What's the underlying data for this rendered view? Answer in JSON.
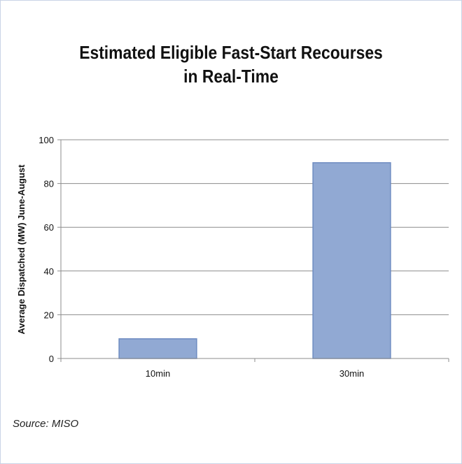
{
  "title_lines": [
    "Estimated Eligible Fast-Start Recourses",
    "in Real-Time"
  ],
  "source": "Source: MISO",
  "colors": {
    "bar_fill": "#91a9d3",
    "bar_stroke": "#6e8cc1",
    "grid": "#8c8c8c",
    "text": "#111111"
  },
  "chart_data": {
    "type": "bar",
    "title": "Estimated Eligible Fast-Start Recourses in Real-Time",
    "categories": [
      "10min",
      "30min"
    ],
    "values": [
      9,
      89.5
    ],
    "xlabel": "",
    "ylabel": "Average Dispatched (MW) June-August",
    "ylim": [
      0,
      100
    ],
    "yticks": [
      0,
      20,
      40,
      60,
      80,
      100
    ],
    "grid": true,
    "legend": "none"
  }
}
